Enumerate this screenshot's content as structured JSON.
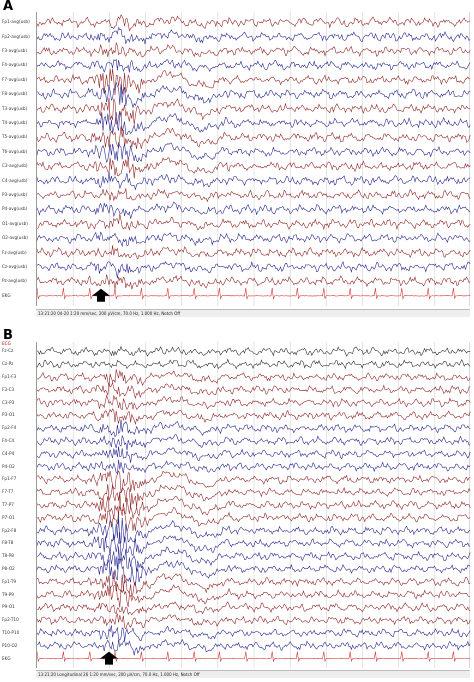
{
  "panel_a": {
    "letter": "A",
    "status_text": "13:21:20 04-20 1:20 mm/sec, 200 µV/cm, 70.0 Hz, 1.000 Hz, Notch Off",
    "channels": [
      "Fp1-avg(usb)",
      "Fp2-avg(usb)",
      "F3-avg(usb)",
      "F4-avg(usb)",
      "F7-avg(usb)",
      "F8-avg(usb)",
      "T3-avg(usb)",
      "T4-avg(usb)",
      "T5-avg(usb)",
      "T6-avg(usb)",
      "C3-avg(usb)",
      "C4-avg(usb)",
      "P3-avg(usb)",
      "P4-avg(usb)",
      "O1-avg(usb)",
      "O2-avg(usb)",
      "Fz-avg(usb)",
      "Cz-avg(usb)",
      "Pz-avg(usb)",
      "EKG"
    ]
  },
  "panel_b": {
    "letter": "B",
    "top_marker": "ECG",
    "status_text": "13:21:20 Longitudinal 26 1:20 mm/sec, 200 µV/cm, 70.0 Hz, 1.000 Hz, Notch Off",
    "channels": [
      "Fz-Cz",
      "Cz-Pz",
      "Fp1-F3",
      "F3-C3",
      "C3-P3",
      "P3-O1",
      "Fp2-F4",
      "F4-C4",
      "C4-P4",
      "P4-O2",
      "Fp1-F7",
      "F7-T7",
      "T7-P7",
      "P7-O1",
      "Fp2-F8",
      "F8-T8",
      "T8-P8",
      "P8-O2",
      "Fp1-T9",
      "T9-P9",
      "P9-O1",
      "Fp2-T10",
      "T10-P10",
      "P10-O2",
      "EKG"
    ]
  },
  "colors": {
    "trace_red": "#8b1a1a",
    "trace_blue": "#1a1a8b",
    "trace_black": "#222222",
    "ekg_red": "#d42a2a",
    "grid": "#c8c8c8",
    "arrow": "#000000"
  },
  "icons": [
    "up-arrow-icon"
  ]
}
